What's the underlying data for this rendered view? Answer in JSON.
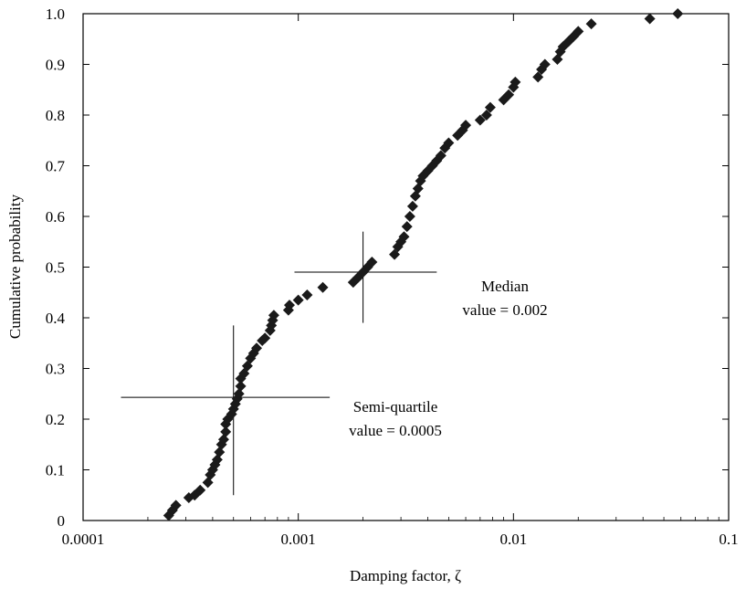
{
  "chart_data": {
    "type": "scatter",
    "xlabel": "Damping factor, ζ",
    "ylabel": "Cumulative probability",
    "x_scale": "log",
    "xlim": [
      0.0001,
      0.1
    ],
    "ylim": [
      0,
      1.0
    ],
    "x_ticks": [
      "0.0001",
      "0.001",
      "0.01",
      "0.1"
    ],
    "y_ticks": [
      "0",
      "0.1",
      "0.2",
      "0.3",
      "0.4",
      "0.5",
      "0.6",
      "0.7",
      "0.8",
      "0.9",
      "1.0"
    ],
    "grid": false,
    "marker": "diamond",
    "marker_color": "#1a1a1a",
    "points": [
      [
        0.00025,
        0.01
      ],
      [
        0.00026,
        0.02
      ],
      [
        0.00027,
        0.03
      ],
      [
        0.00031,
        0.045
      ],
      [
        0.00033,
        0.05
      ],
      [
        0.00035,
        0.06
      ],
      [
        0.00038,
        0.075
      ],
      [
        0.00039,
        0.09
      ],
      [
        0.0004,
        0.1
      ],
      [
        0.00041,
        0.11
      ],
      [
        0.00042,
        0.12
      ],
      [
        0.00043,
        0.135
      ],
      [
        0.00044,
        0.15
      ],
      [
        0.00045,
        0.16
      ],
      [
        0.00046,
        0.175
      ],
      [
        0.00046,
        0.19
      ],
      [
        0.00047,
        0.2
      ],
      [
        0.00049,
        0.21
      ],
      [
        0.0005,
        0.22
      ],
      [
        0.00051,
        0.23
      ],
      [
        0.00052,
        0.24
      ],
      [
        0.00053,
        0.25
      ],
      [
        0.00054,
        0.265
      ],
      [
        0.00054,
        0.28
      ],
      [
        0.00056,
        0.29
      ],
      [
        0.00058,
        0.305
      ],
      [
        0.0006,
        0.32
      ],
      [
        0.00062,
        0.33
      ],
      [
        0.00064,
        0.34
      ],
      [
        0.00068,
        0.355
      ],
      [
        0.0007,
        0.36
      ],
      [
        0.00074,
        0.375
      ],
      [
        0.00075,
        0.385
      ],
      [
        0.00076,
        0.395
      ],
      [
        0.00077,
        0.405
      ],
      [
        0.0009,
        0.415
      ],
      [
        0.00091,
        0.425
      ],
      [
        0.001,
        0.435
      ],
      [
        0.0011,
        0.445
      ],
      [
        0.0013,
        0.46
      ],
      [
        0.0018,
        0.47
      ],
      [
        0.0019,
        0.48
      ],
      [
        0.002,
        0.49
      ],
      [
        0.0021,
        0.5
      ],
      [
        0.0022,
        0.51
      ],
      [
        0.0028,
        0.525
      ],
      [
        0.0029,
        0.54
      ],
      [
        0.003,
        0.55
      ],
      [
        0.0031,
        0.56
      ],
      [
        0.0032,
        0.58
      ],
      [
        0.0033,
        0.6
      ],
      [
        0.0034,
        0.62
      ],
      [
        0.0035,
        0.64
      ],
      [
        0.0036,
        0.655
      ],
      [
        0.0037,
        0.67
      ],
      [
        0.0038,
        0.68
      ],
      [
        0.004,
        0.69
      ],
      [
        0.0042,
        0.7
      ],
      [
        0.0044,
        0.71
      ],
      [
        0.0046,
        0.72
      ],
      [
        0.0048,
        0.735
      ],
      [
        0.005,
        0.745
      ],
      [
        0.0055,
        0.76
      ],
      [
        0.0058,
        0.77
      ],
      [
        0.006,
        0.78
      ],
      [
        0.007,
        0.79
      ],
      [
        0.0075,
        0.8
      ],
      [
        0.0078,
        0.815
      ],
      [
        0.009,
        0.83
      ],
      [
        0.0095,
        0.84
      ],
      [
        0.01,
        0.855
      ],
      [
        0.0102,
        0.865
      ],
      [
        0.013,
        0.875
      ],
      [
        0.0135,
        0.89
      ],
      [
        0.014,
        0.9
      ],
      [
        0.016,
        0.91
      ],
      [
        0.0165,
        0.925
      ],
      [
        0.017,
        0.935
      ],
      [
        0.018,
        0.945
      ],
      [
        0.019,
        0.955
      ],
      [
        0.02,
        0.965
      ],
      [
        0.023,
        0.98
      ],
      [
        0.043,
        0.99
      ],
      [
        0.058,
        1.0
      ]
    ],
    "crosshairs": [
      {
        "x": 0.0005,
        "y": 0.243,
        "x_from": 0.00015,
        "x_to": 0.0014,
        "y_from": 0.05,
        "y_to": 0.385
      },
      {
        "x": 0.002,
        "y": 0.49,
        "x_from": 0.00096,
        "x_to": 0.0044,
        "y_from": 0.39,
        "y_to": 0.57
      }
    ],
    "annotations": [
      {
        "line1": "Median",
        "line2": "value = 0.002"
      },
      {
        "line1": "Semi-quartile",
        "line2": "value = 0.0005"
      }
    ]
  }
}
